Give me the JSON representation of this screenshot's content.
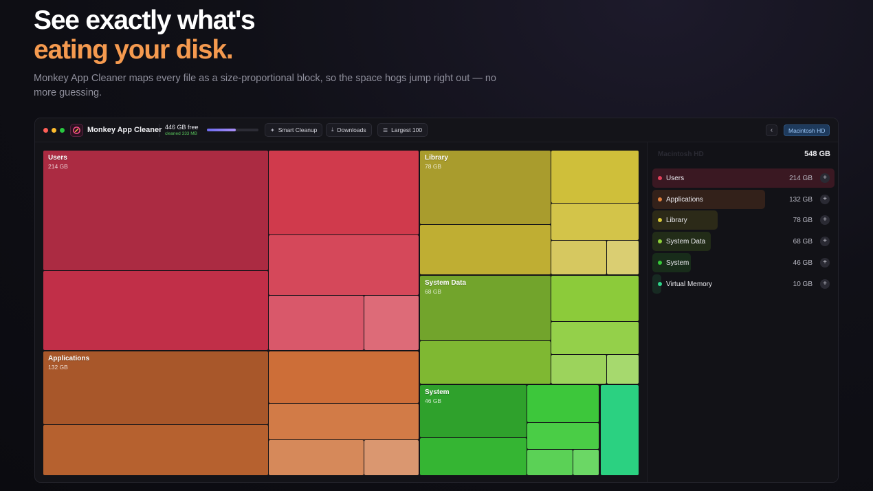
{
  "hero": {
    "title_line1": "See exactly what's",
    "title_line2": "eating your disk.",
    "subtitle": "Monkey App Cleaner maps every file as a size-proportional block, so the space hogs jump right out — no more guessing."
  },
  "app": {
    "name": "Monkey App Cleaner",
    "free_label": "446 GB free",
    "cleaned_label": "cleaned 333 MB",
    "disk_used_fraction": 0.56,
    "toolbar": {
      "smart_cleanup": "Smart Cleanup",
      "downloads": "Downloads",
      "largest": "Largest 100"
    },
    "back_glyph": "‹",
    "drive_label": "Macintosh HD"
  },
  "treemap": {
    "users": {
      "label": "Users",
      "size": "214 GB",
      "color": "#c42d47"
    },
    "applications": {
      "label": "Applications",
      "size": "132 GB",
      "color": "#b25a2a"
    },
    "library": {
      "label": "Library",
      "size": "78 GB",
      "color": "#b0a12e"
    },
    "system_data": {
      "label": "System Data",
      "size": "68 GB",
      "color": "#74a82c"
    },
    "system": {
      "label": "System",
      "size": "46 GB",
      "color": "#2ea62c"
    }
  },
  "sidebar": {
    "title": "Macintosh HD",
    "total": "548 GB",
    "items": [
      {
        "label": "Users",
        "size": "214 GB",
        "color": "#e0405a",
        "fraction": 1.0,
        "bg": "#3a1822"
      },
      {
        "label": "Applications",
        "size": "132 GB",
        "color": "#e0803c",
        "fraction": 0.62,
        "bg": "#33211a"
      },
      {
        "label": "Library",
        "size": "78 GB",
        "color": "#d8c83a",
        "fraction": 0.36,
        "bg": "#2c2a18"
      },
      {
        "label": "System Data",
        "size": "68 GB",
        "color": "#8fd13a",
        "fraction": 0.32,
        "bg": "#222c18"
      },
      {
        "label": "System",
        "size": "46 GB",
        "color": "#37c93a",
        "fraction": 0.21,
        "bg": "#182c1a"
      },
      {
        "label": "Virtual Memory",
        "size": "10 GB",
        "color": "#2fd38a",
        "fraction": 0.05,
        "bg": "#172a22"
      }
    ],
    "plus_glyph": "+"
  }
}
